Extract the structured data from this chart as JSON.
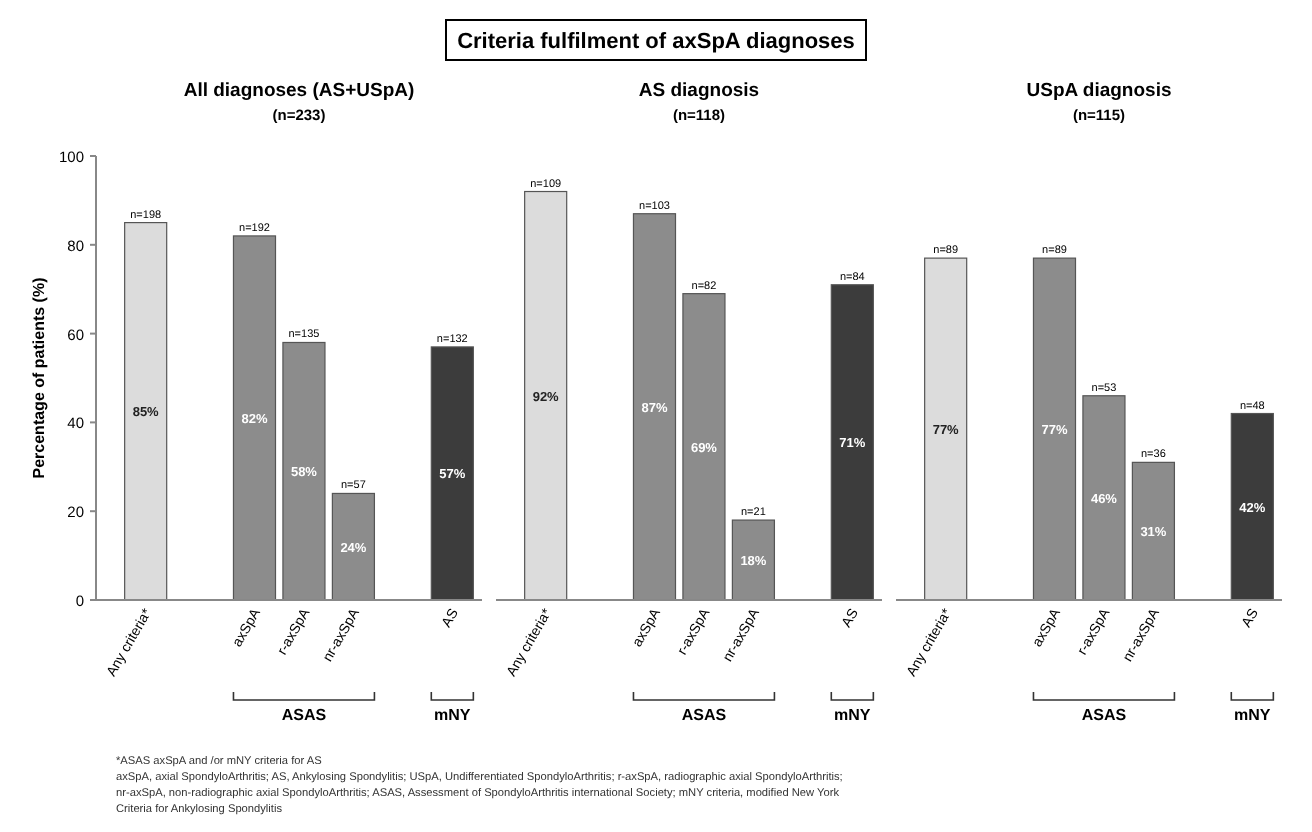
{
  "chart_data": [
    {
      "type": "other",
      "title": "Criteria fulfilment of axSpA diagnoses",
      "annotations": [
        "*ASAS axSpA and /or mNY criteria for AS",
        "axSpA, axial SpondyloArthritis; AS, Ankylosing Spondylitis; USpA, Undifferentiated SpondyloArthritis; r-axSpA, radiographic axial SpondyloArthritis;",
        "nr-axSpA, non-radiographic axial SpondyloArthritis; ASAS, Assessment of SpondyloArthritis international Society; mNY criteria, modified New York",
        "Criteria for Ankylosing Spondylitis"
      ]
    },
    {
      "type": "bar",
      "title": "All diagnoses (AS+USpA)",
      "subtitle": "(n=233)",
      "ylabel": "Percentage of patients (%)",
      "categories": [
        "Any criteria*",
        "axSpA",
        "r-axSpA",
        "nr-axSpA",
        "AS"
      ],
      "values": [
        85,
        82,
        58,
        24,
        57
      ],
      "colors": [
        "#dcdcdc",
        "#8c8c8c",
        "#8c8c8c",
        "#8c8c8c",
        "#3c3c3c"
      ],
      "value_labels": [
        "85%",
        "82%",
        "58%",
        "24%",
        "57%"
      ],
      "ylim": [
        0,
        100
      ],
      "yticks": [
        0,
        20,
        40,
        60,
        80,
        100
      ],
      "grid": false,
      "annotations": [
        {
          "text": "n=198",
          "x": "Any criteria*",
          "y": 85
        },
        {
          "text": "n=192",
          "x": "axSpA",
          "y": 82
        },
        {
          "text": "n=135",
          "x": "r-axSpA",
          "y": 58
        },
        {
          "text": "n=57",
          "x": "nr-axSpA",
          "y": 24
        },
        {
          "text": "n=132",
          "x": "AS",
          "y": 57
        },
        "ASAS",
        "mNY"
      ]
    },
    {
      "type": "bar",
      "title": "AS diagnosis",
      "subtitle": "(n=118)",
      "categories": [
        "Any criteria*",
        "axSpA",
        "r-axSpA",
        "nr-axSpA",
        "AS"
      ],
      "values": [
        92,
        87,
        69,
        18,
        71
      ],
      "colors": [
        "#dcdcdc",
        "#8c8c8c",
        "#8c8c8c",
        "#8c8c8c",
        "#3c3c3c"
      ],
      "value_labels": [
        "92%",
        "87%",
        "69%",
        "18%",
        "71%"
      ],
      "ylim": [
        0,
        100
      ],
      "tick_labels": "x",
      "grid": false,
      "annotations": [
        {
          "text": "n=109",
          "x": "Any criteria*",
          "y": 92
        },
        {
          "text": "n=103",
          "x": "axSpA",
          "y": 87
        },
        {
          "text": "n=82",
          "x": "r-axSpA",
          "y": 69
        },
        {
          "text": "n=21",
          "x": "nr-axSpA",
          "y": 18
        },
        {
          "text": "n=84",
          "x": "AS",
          "y": 71
        },
        "ASAS",
        "mNY"
      ]
    },
    {
      "type": "bar",
      "title": "USpA diagnosis",
      "subtitle": "(n=115)",
      "categories": [
        "Any criteria*",
        "axSpA",
        "r-axSpA",
        "nr-axSpA",
        "AS"
      ],
      "values": [
        77,
        77,
        46,
        31,
        42
      ],
      "colors": [
        "#dcdcdc",
        "#8c8c8c",
        "#8c8c8c",
        "#8c8c8c",
        "#3c3c3c"
      ],
      "value_labels": [
        "77%",
        "77%",
        "46%",
        "31%",
        "42%"
      ],
      "ylim": [
        0,
        100
      ],
      "tick_labels": "x",
      "grid": false,
      "annotations": [
        {
          "text": "n=89",
          "x": "Any criteria*",
          "y": 77
        },
        {
          "text": "n=89",
          "x": "axSpA",
          "y": 77
        },
        {
          "text": "n=53",
          "x": "r-axSpA",
          "y": 46
        },
        {
          "text": "n=36",
          "x": "nr-axSpA",
          "y": 31
        },
        {
          "text": "n=48",
          "x": "AS",
          "y": 42
        },
        "ASAS",
        "mNY"
      ]
    }
  ]
}
